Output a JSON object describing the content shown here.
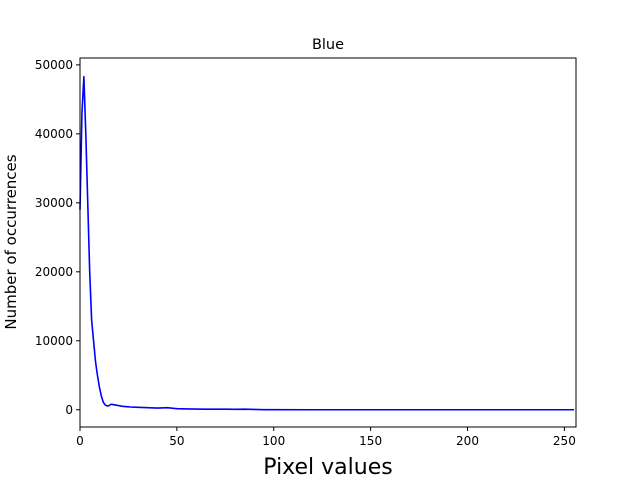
{
  "chart_data": {
    "type": "line",
    "title": "Blue",
    "xlabel": "Pixel values",
    "ylabel": "Number of occurrences",
    "xlim": [
      0,
      256
    ],
    "ylim": [
      -2500,
      51000
    ],
    "xticks": [
      0,
      50,
      100,
      150,
      200,
      250
    ],
    "yticks": [
      0,
      10000,
      20000,
      30000,
      40000,
      50000
    ],
    "grid": false,
    "legend": "none",
    "series": [
      {
        "color": "#0000ff",
        "x": [
          0,
          1,
          2,
          3,
          4,
          5,
          6,
          7,
          8,
          9,
          10,
          11,
          12,
          13,
          14,
          15,
          16,
          17,
          18,
          20,
          22,
          24,
          26,
          28,
          30,
          35,
          40,
          45,
          50,
          55,
          60,
          65,
          70,
          75,
          80,
          85,
          90,
          95,
          100,
          120,
          150,
          200,
          255
        ],
        "y": [
          29000,
          43000,
          48300,
          40000,
          30000,
          20000,
          13000,
          10000,
          7000,
          5000,
          3300,
          2000,
          1100,
          700,
          550,
          600,
          800,
          750,
          700,
          600,
          500,
          450,
          400,
          380,
          350,
          300,
          250,
          300,
          150,
          120,
          100,
          90,
          80,
          80,
          60,
          80,
          40,
          10,
          5,
          0,
          0,
          0,
          0
        ]
      }
    ]
  }
}
